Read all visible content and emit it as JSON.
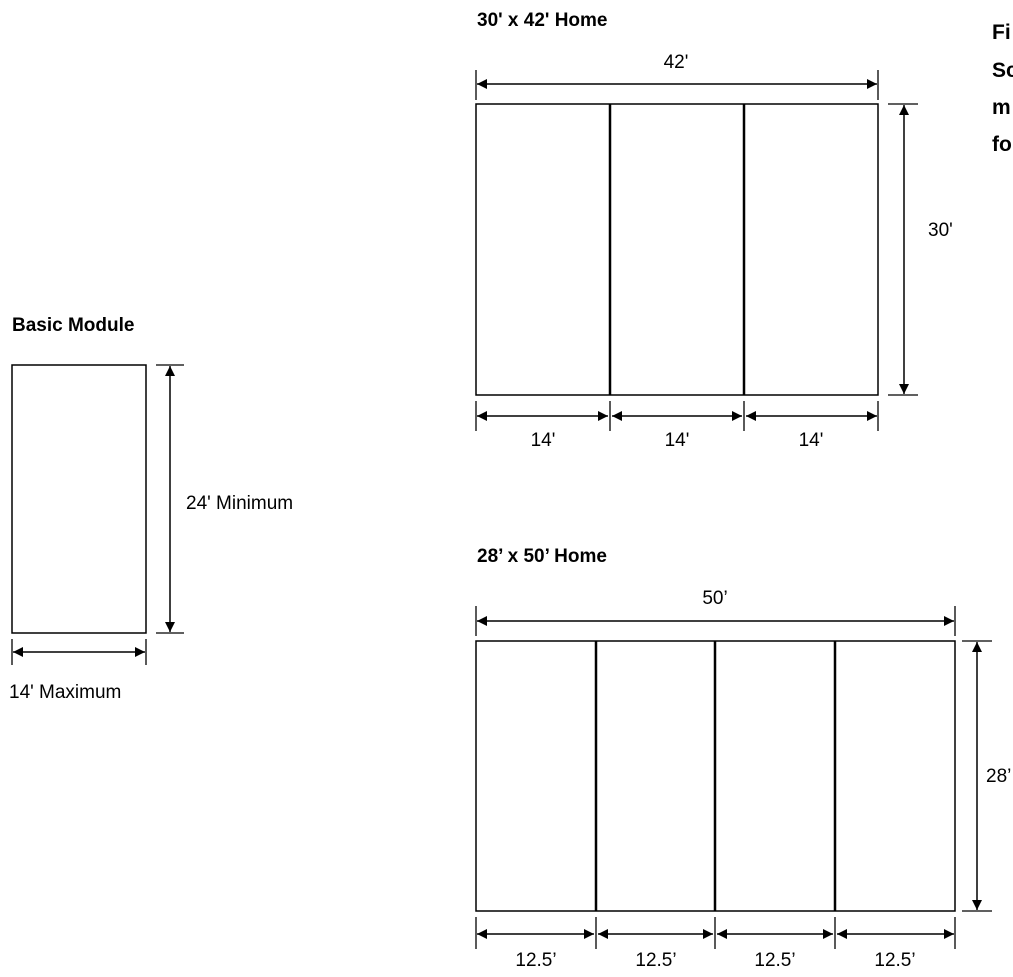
{
  "caption": {
    "lines": [
      "Fi",
      "Sc",
      "m",
      "fo"
    ]
  },
  "basic_module": {
    "title": "Basic Module",
    "height_label": "24' Minimum",
    "width_label": "14' Maximum"
  },
  "home_30x42": {
    "title": "30' x 42' Home",
    "overall_width": "42'",
    "height": "30'",
    "module_widths": [
      "14'",
      "14'",
      "14'"
    ]
  },
  "home_28x50": {
    "title": "28’ x 50’ Home",
    "overall_width": "50’",
    "height": "28’",
    "module_widths": [
      "12.5’",
      "12.5’",
      "12.5’",
      "12.5’"
    ]
  }
}
